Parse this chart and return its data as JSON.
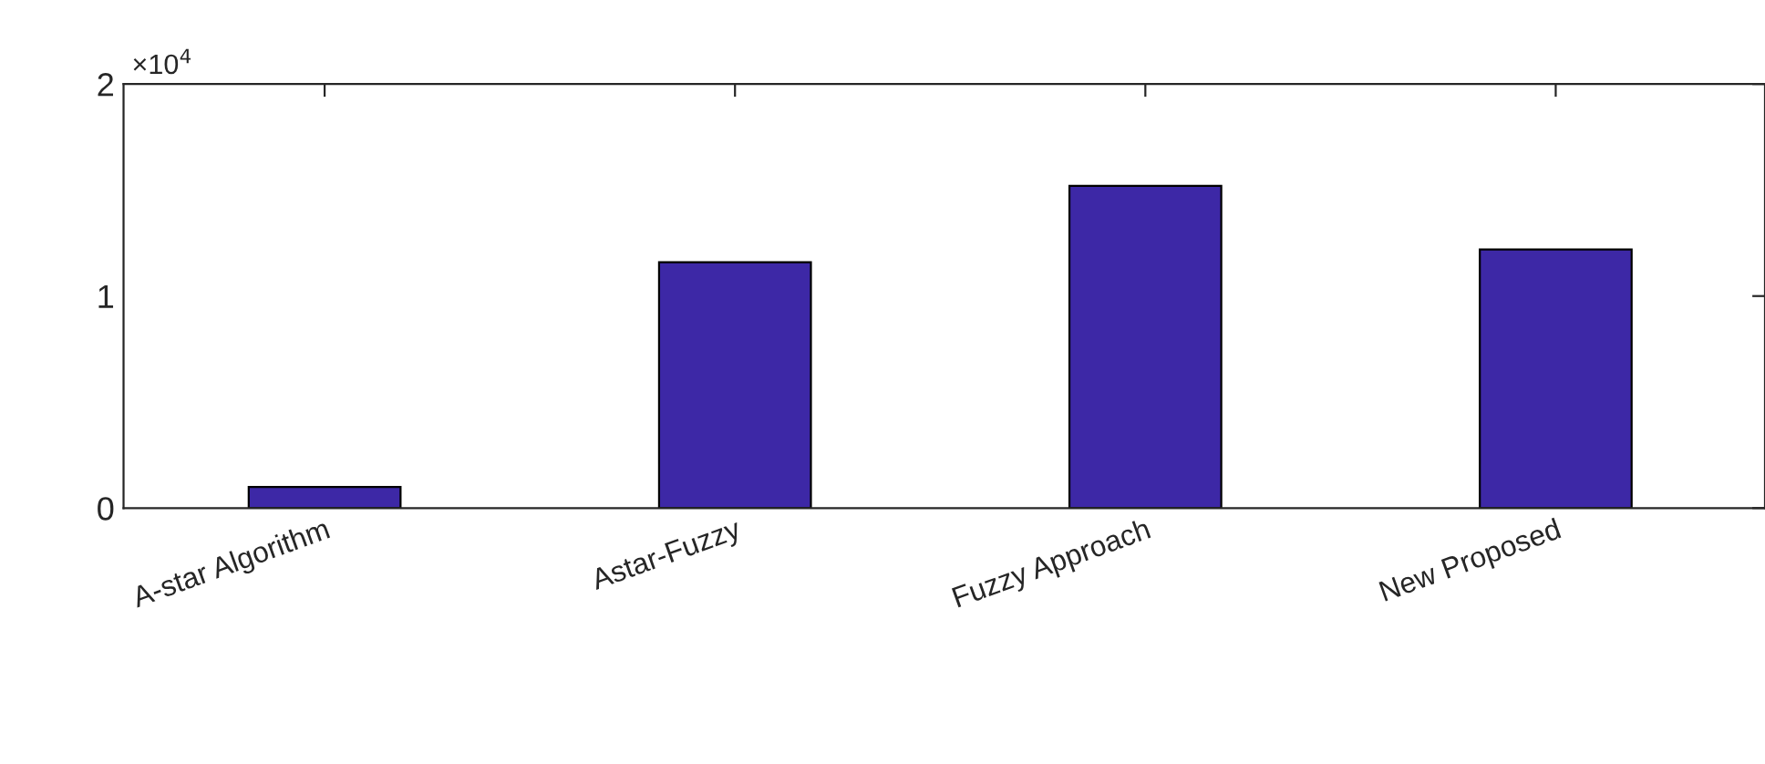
{
  "chart_data": {
    "type": "bar",
    "categories": [
      "A-star Algorithm",
      "Astar-Fuzzy",
      "Fuzzy Approach",
      "New Proposed"
    ],
    "values": [
      0.1,
      1.16,
      1.52,
      1.22
    ],
    "color": "#3d28a6",
    "ylim": [
      0,
      2
    ],
    "yticks": [
      0,
      1,
      2
    ],
    "annotations": [
      "×10$^{4}$"
    ],
    "grid": false,
    "legend": false
  }
}
